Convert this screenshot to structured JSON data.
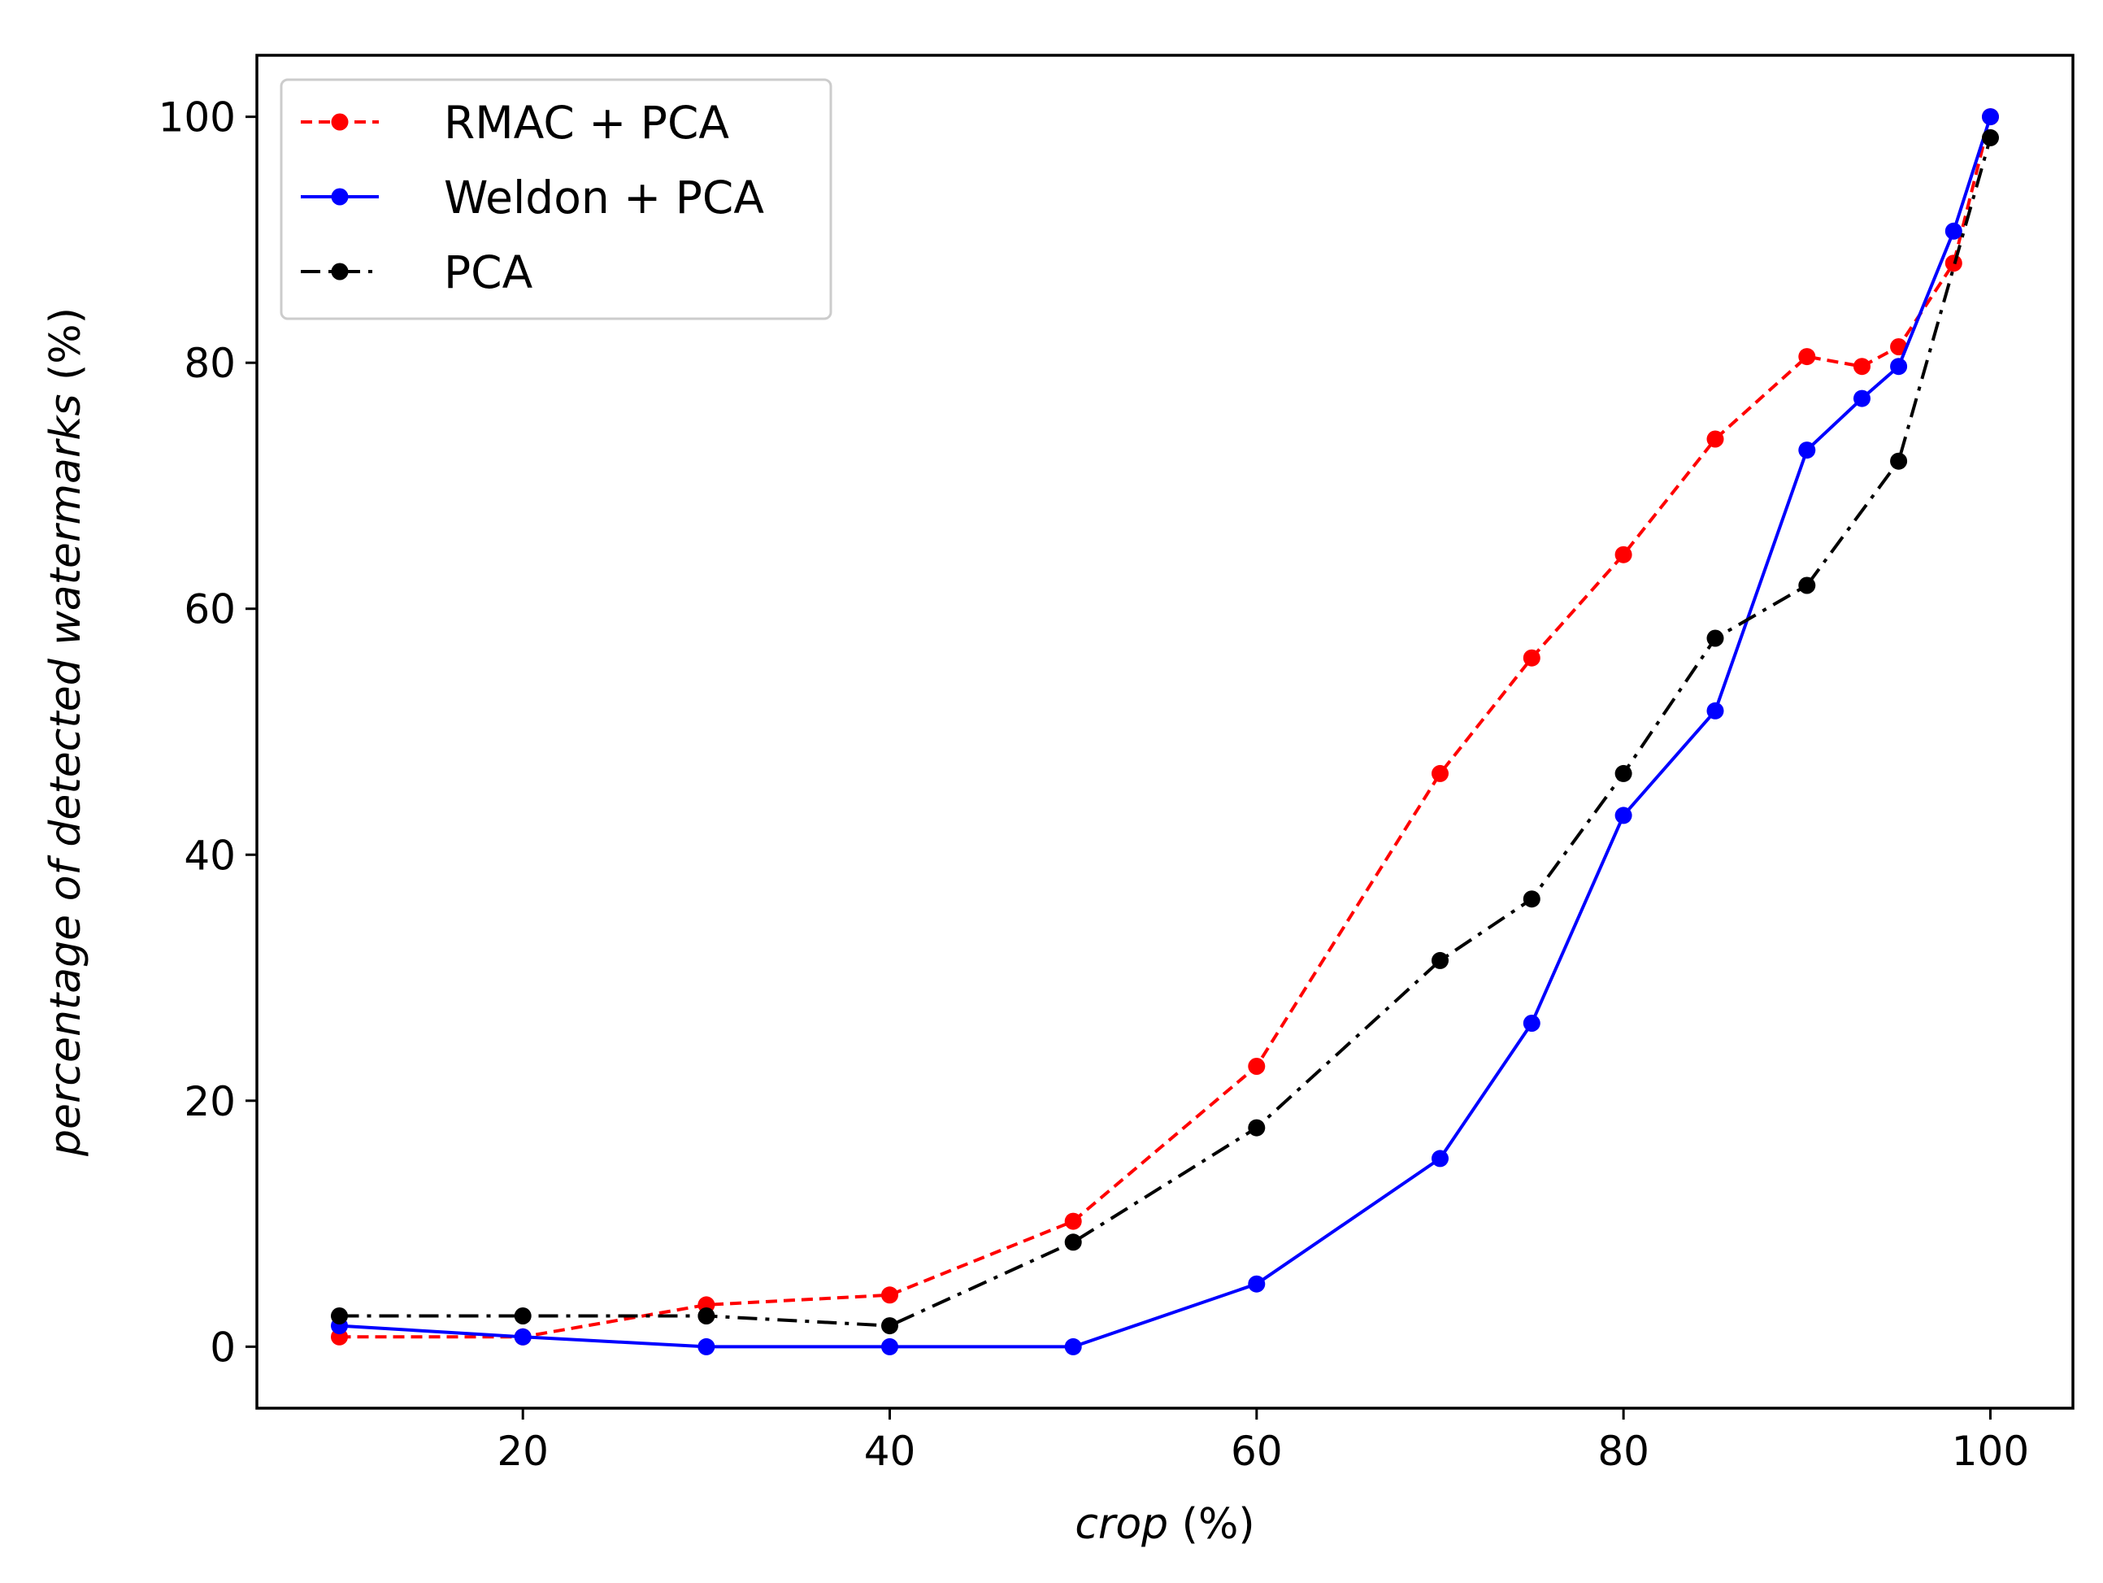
{
  "chart_data": {
    "type": "line",
    "title": "",
    "xlabel": "crop (%)",
    "ylabel": "percentage of detected watermarks (%)",
    "xlabel_italic_part": "crop",
    "xlabel_unit_part": " (%)",
    "ylabel_italic_part": "percentage of detected watermarks",
    "ylabel_unit_part": " (%)",
    "xlim": [
      5.5,
      104.5
    ],
    "ylim": [
      -5,
      105
    ],
    "xticks": [
      20,
      40,
      60,
      80,
      100
    ],
    "yticks": [
      0,
      20,
      40,
      60,
      80,
      100
    ],
    "grid": false,
    "legend_position": "upper-left",
    "series": [
      {
        "name": "RMAC + PCA",
        "color": "#ff0000",
        "line_style": "dashed",
        "x": [
          10,
          20,
          30,
          40,
          50,
          60,
          70,
          75,
          80,
          85,
          90,
          93,
          95,
          98,
          100
        ],
        "y": [
          0.8,
          0.8,
          3.4,
          4.2,
          10.2,
          22.8,
          46.6,
          56,
          64.4,
          73.8,
          80.5,
          79.7,
          81.3,
          88.1,
          100
        ]
      },
      {
        "name": "Weldon + PCA",
        "color": "#0000ff",
        "line_style": "solid",
        "x": [
          10,
          20,
          30,
          40,
          50,
          60,
          70,
          75,
          80,
          85,
          90,
          93,
          95,
          98,
          100
        ],
        "y": [
          1.7,
          0.8,
          0,
          0,
          0,
          5.1,
          15.3,
          26.3,
          43.2,
          51.7,
          72.9,
          77.1,
          79.7,
          90.7,
          100
        ]
      },
      {
        "name": "PCA",
        "color": "#000000",
        "line_style": "dashdot",
        "x": [
          10,
          20,
          30,
          40,
          50,
          60,
          70,
          75,
          80,
          85,
          90,
          95,
          100
        ],
        "y": [
          2.5,
          2.5,
          2.5,
          1.7,
          8.5,
          17.8,
          31.4,
          36.4,
          46.6,
          57.6,
          61.9,
          72,
          98.3
        ]
      }
    ]
  }
}
